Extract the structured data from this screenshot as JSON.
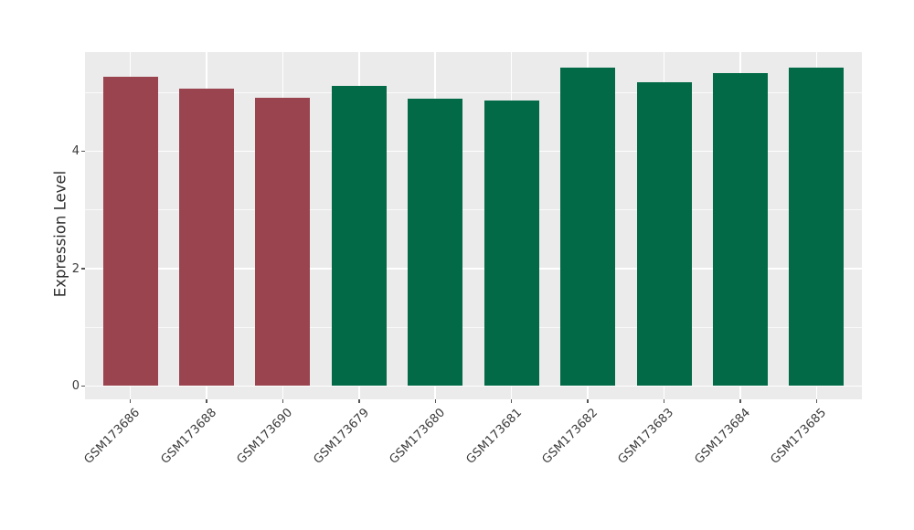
{
  "figure": {
    "background": "#ffffff"
  },
  "panel": {
    "background": "#EBEBEB",
    "gridline_color": "#FFFFFF"
  },
  "colors": {
    "group_a": "#9A4450",
    "group_b": "#026A47",
    "tick_text": "#3b3b3b",
    "tick_mark": "#555555"
  },
  "chart_data": {
    "type": "bar",
    "title": "",
    "xlabel": "",
    "ylabel": "Expression Level",
    "categories": [
      "GSM173686",
      "GSM173688",
      "GSM173690",
      "GSM173679",
      "GSM173680",
      "GSM173681",
      "GSM173682",
      "GSM173683",
      "GSM173684",
      "GSM173685"
    ],
    "values": [
      5.28,
      5.07,
      4.91,
      5.12,
      4.9,
      4.86,
      5.43,
      5.18,
      5.34,
      5.43
    ],
    "bar_colors": [
      "#9A4450",
      "#9A4450",
      "#9A4450",
      "#026A47",
      "#026A47",
      "#026A47",
      "#026A47",
      "#026A47",
      "#026A47",
      "#026A47"
    ],
    "yticks": [
      0,
      2,
      4
    ],
    "yticks_minor": [
      1,
      3,
      5
    ],
    "ylim": [
      -0.23,
      5.69
    ],
    "grid": true,
    "legend": null,
    "bar_orientation": "vertical",
    "xtick_rotation_deg": 45
  }
}
